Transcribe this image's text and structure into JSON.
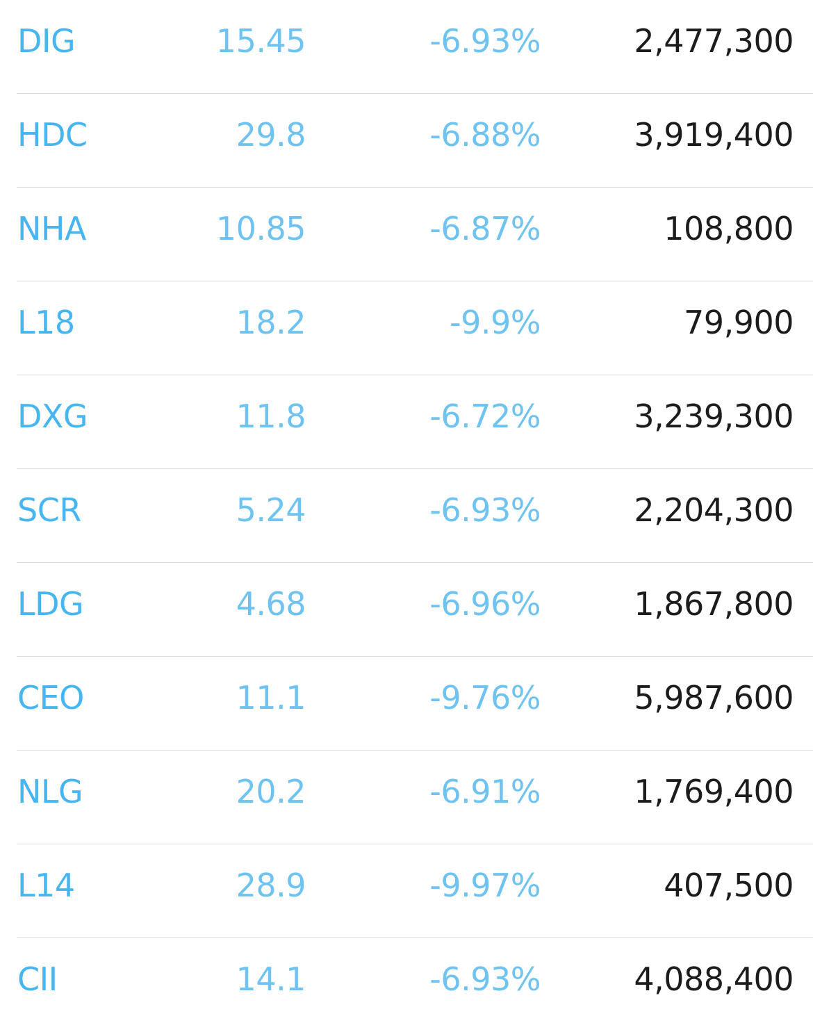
{
  "colors": {
    "symbol": "#47b6f0",
    "value": "#6ec3f1",
    "volume": "#1c1c1e",
    "divider": "#dcdcdc"
  },
  "rows": [
    {
      "symbol": "DIG",
      "price": "15.45",
      "change": "-6.93%",
      "volume": "2,477,300"
    },
    {
      "symbol": "HDC",
      "price": "29.8",
      "change": "-6.88%",
      "volume": "3,919,400"
    },
    {
      "symbol": "NHA",
      "price": "10.85",
      "change": "-6.87%",
      "volume": "108,800"
    },
    {
      "symbol": "L18",
      "price": "18.2",
      "change": "-9.9%",
      "volume": "79,900"
    },
    {
      "symbol": "DXG",
      "price": "11.8",
      "change": "-6.72%",
      "volume": "3,239,300"
    },
    {
      "symbol": "SCR",
      "price": "5.24",
      "change": "-6.93%",
      "volume": "2,204,300"
    },
    {
      "symbol": "LDG",
      "price": "4.68",
      "change": "-6.96%",
      "volume": "1,867,800"
    },
    {
      "symbol": "CEO",
      "price": "11.1",
      "change": "-9.76%",
      "volume": "5,987,600"
    },
    {
      "symbol": "NLG",
      "price": "20.2",
      "change": "-6.91%",
      "volume": "1,769,400"
    },
    {
      "symbol": "L14",
      "price": "28.9",
      "change": "-9.97%",
      "volume": "407,500"
    },
    {
      "symbol": "CII",
      "price": "14.1",
      "change": "-6.93%",
      "volume": "4,088,400"
    }
  ]
}
